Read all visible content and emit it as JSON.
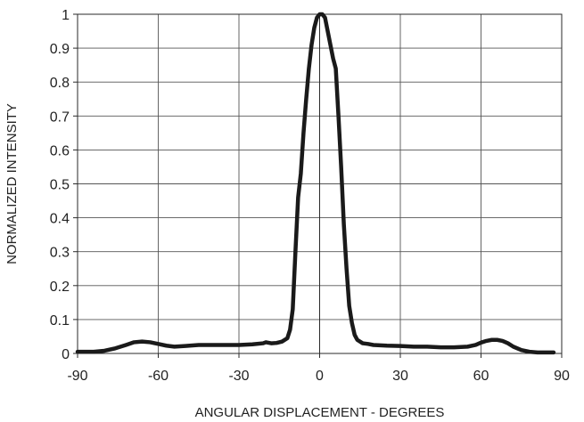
{
  "chart_data": {
    "type": "line",
    "title": "",
    "xlabel": "ANGULAR DISPLACEMENT - DEGREES",
    "ylabel": "NORMALIZED INTENSITY",
    "xlim": [
      -90,
      90
    ],
    "ylim": [
      0,
      1
    ],
    "x_ticks": [
      -90,
      -60,
      -30,
      0,
      30,
      60,
      90
    ],
    "y_ticks": [
      0,
      0.1,
      0.2,
      0.3,
      0.4,
      0.5,
      0.6,
      0.7,
      0.8,
      0.9,
      1
    ],
    "x_tick_labels": [
      "-90",
      "-60",
      "-30",
      "0",
      "30",
      "60",
      "90"
    ],
    "y_tick_labels": [
      "0",
      "0.1",
      "0.2",
      "0.3",
      "0.4",
      "0.5",
      "0.6",
      "0.7",
      "0.8",
      "0.9",
      "1"
    ],
    "grid": true,
    "legend": "none",
    "series": [
      {
        "color": "#1a1a1a",
        "x": [
          -90,
          -84,
          -80,
          -76,
          -72,
          -69,
          -66,
          -63,
          -60,
          -57,
          -54,
          -50,
          -45,
          -40,
          -35,
          -30,
          -25,
          -21,
          -20,
          -18,
          -16,
          -14,
          -12,
          -11,
          -10,
          -9,
          -8,
          -7,
          -6,
          -5,
          -4,
          -3,
          -2,
          -1,
          0,
          1,
          2,
          3,
          4,
          5,
          6,
          7,
          8,
          9,
          10,
          11,
          12,
          13,
          14,
          16,
          18,
          20,
          25,
          30,
          35,
          40,
          45,
          50,
          55,
          58,
          60,
          62,
          64,
          66,
          68,
          70,
          72,
          75,
          78,
          81,
          84,
          87
        ],
        "y": [
          0.005,
          0.005,
          0.008,
          0.015,
          0.025,
          0.033,
          0.035,
          0.033,
          0.028,
          0.023,
          0.02,
          0.022,
          0.025,
          0.025,
          0.025,
          0.025,
          0.027,
          0.03,
          0.033,
          0.03,
          0.031,
          0.035,
          0.045,
          0.07,
          0.13,
          0.3,
          0.46,
          0.53,
          0.65,
          0.75,
          0.84,
          0.91,
          0.96,
          0.99,
          1.0,
          1.0,
          0.99,
          0.95,
          0.91,
          0.87,
          0.84,
          0.7,
          0.55,
          0.38,
          0.25,
          0.14,
          0.09,
          0.055,
          0.04,
          0.03,
          0.028,
          0.025,
          0.023,
          0.022,
          0.02,
          0.02,
          0.018,
          0.018,
          0.02,
          0.025,
          0.032,
          0.037,
          0.04,
          0.04,
          0.037,
          0.03,
          0.02,
          0.01,
          0.005,
          0.003,
          0.003,
          0.003
        ]
      }
    ]
  }
}
